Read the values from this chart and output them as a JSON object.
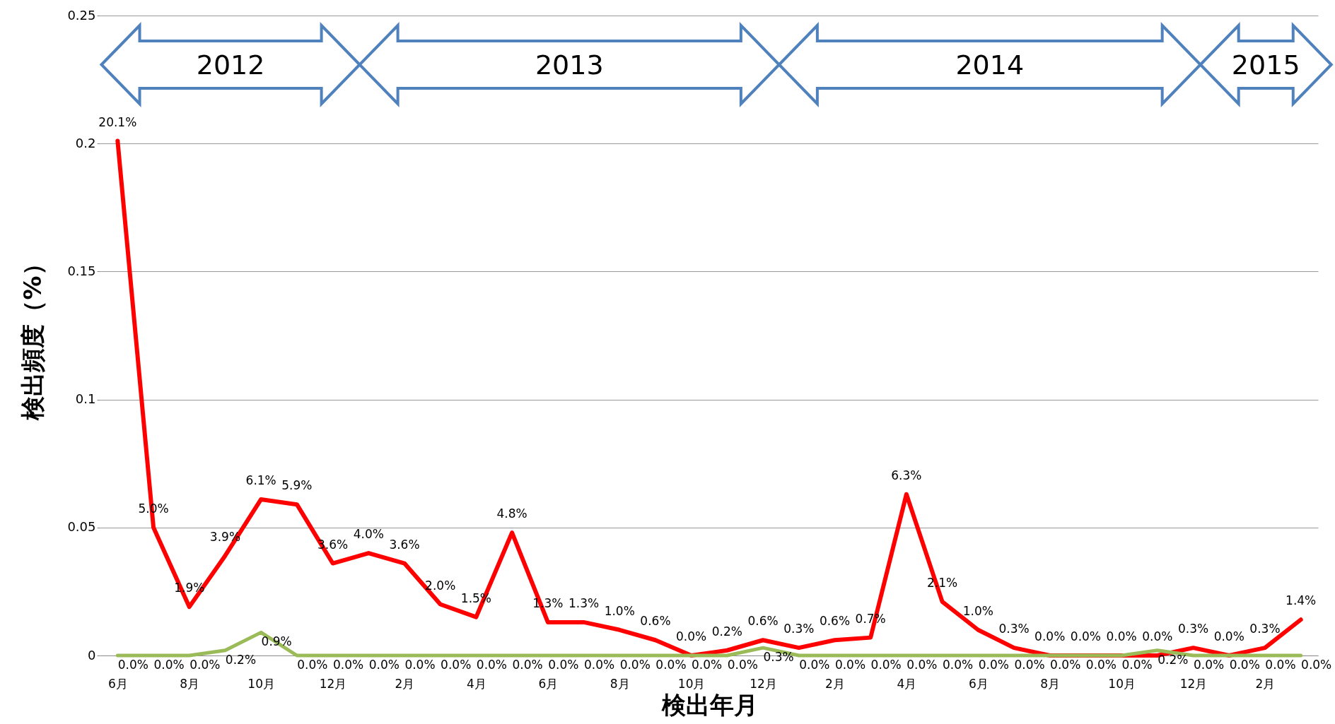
{
  "chart_data": {
    "type": "line",
    "xlabel": "検出年月",
    "ylabel": "検出頻度（%）",
    "categories": [
      "6月",
      null,
      "8月",
      null,
      "10月",
      null,
      "12月",
      null,
      "2月",
      null,
      "4月",
      null,
      "6月",
      null,
      "8月",
      null,
      "10月",
      null,
      "12月",
      null,
      "2月",
      null,
      "4月",
      null,
      "6月",
      null,
      "8月",
      null,
      "10月",
      null,
      "12月",
      null,
      "2月",
      null
    ],
    "series": [
      {
        "color": "#ff0000",
        "values": [
          0.201,
          0.05,
          0.019,
          0.039,
          0.061,
          0.059,
          0.036,
          0.04,
          0.036,
          0.02,
          0.015,
          0.048,
          0.013,
          0.013,
          0.01,
          0.006,
          0.0,
          0.002,
          0.006,
          0.003,
          0.006,
          0.007,
          0.063,
          0.021,
          0.01,
          0.003,
          0.0,
          0.0,
          0.0,
          0.0,
          0.003,
          0.0,
          0.003,
          0.014
        ],
        "value_labels": [
          "20.1%",
          "5.0%",
          "1.9%",
          "3.9%",
          "6.1%",
          "5.9%",
          "3.6%",
          "4.0%",
          "3.6%",
          "2.0%",
          "1.5%",
          "4.8%",
          "1.3%",
          "1.3%",
          "1.0%",
          "0.6%",
          "0.0%",
          "0.2%",
          "0.6%",
          "0.3%",
          "0.6%",
          "0.7%",
          "6.3%",
          "2.1%",
          "1.0%",
          "0.3%",
          "0.0%",
          "0.0%",
          "0.0%",
          "0.0%",
          "0.3%",
          "0.0%",
          "0.3%",
          "1.4%"
        ]
      },
      {
        "color": "#9bbb59",
        "values": [
          0,
          0,
          0,
          0.002,
          0.009,
          0,
          0,
          0,
          0,
          0,
          0,
          0,
          0,
          0,
          0,
          0,
          0,
          0,
          0.003,
          0,
          0,
          0,
          0,
          0,
          0,
          0,
          0,
          0,
          0,
          0.002,
          0,
          0,
          0,
          0
        ],
        "value_labels": [
          "0.0%",
          "0.0%",
          "0.0%",
          "0.2%",
          "0.9%",
          "0.0%",
          "0.0%",
          "0.0%",
          "0.0%",
          "0.0%",
          "0.0%",
          "0.0%",
          "0.0%",
          "0.0%",
          "0.0%",
          "0.0%",
          "0.0%",
          "0.0%",
          "0.3%",
          "0.0%",
          "0.0%",
          "0.0%",
          "0.0%",
          "0.0%",
          "0.0%",
          "0.0%",
          "0.0%",
          "0.0%",
          "0.0%",
          "0.2%",
          "0.0%",
          "0.0%",
          "0.0%",
          "0.0%"
        ]
      }
    ],
    "ylim": [
      0,
      0.25
    ],
    "yticks": [
      0,
      0.05,
      0.1,
      0.15,
      0.2,
      0.25
    ],
    "grid": "y",
    "annotations": [
      "2012",
      "2013",
      "2014",
      "2015"
    ]
  }
}
